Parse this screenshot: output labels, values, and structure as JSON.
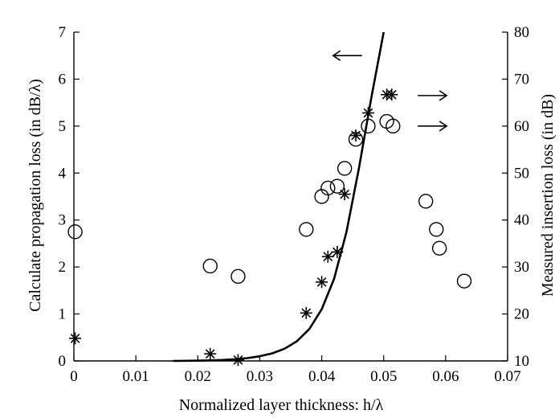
{
  "chart_data": {
    "type": "scatter",
    "title": "",
    "xlabel": "Normalized layer thickness: h/λ",
    "ylabel_left": "Calculate propagation loss (in dB/λ)",
    "ylabel_right": "Measured insertion loss (in dB)",
    "xlim": [
      0,
      0.07
    ],
    "ylim_left": [
      0,
      7
    ],
    "ylim_right": [
      10,
      80
    ],
    "x_ticks": [
      0,
      0.01,
      0.02,
      0.03,
      0.04,
      0.05,
      0.06,
      0.07
    ],
    "x_tick_labels": [
      "0",
      "0.01",
      "0.02",
      "0.03",
      "0.04",
      "0.05",
      "0.06",
      "0.07"
    ],
    "y_left_ticks": [
      0,
      1,
      2,
      3,
      4,
      5,
      6,
      7
    ],
    "y_left_tick_labels": [
      "0",
      "1",
      "2",
      "3",
      "4",
      "5",
      "6",
      "7"
    ],
    "y_right_ticks": [
      10,
      20,
      30,
      40,
      50,
      60,
      70,
      80
    ],
    "y_right_tick_labels": [
      "10",
      "20",
      "30",
      "40",
      "50",
      "60",
      "70",
      "80"
    ],
    "grid": false,
    "series": [
      {
        "name": "Calculated propagation loss",
        "marker": "line",
        "axis": "left",
        "x": [
          0.016,
          0.02,
          0.024,
          0.026,
          0.028,
          0.03,
          0.032,
          0.034,
          0.036,
          0.038,
          0.04,
          0.042,
          0.044,
          0.046,
          0.048,
          0.05
        ],
        "y": [
          0.0,
          0.005,
          0.02,
          0.035,
          0.06,
          0.1,
          0.16,
          0.26,
          0.42,
          0.68,
          1.1,
          1.75,
          2.75,
          4.1,
          5.6,
          7.0
        ]
      },
      {
        "name": "Measured insertion loss (asterisk)",
        "marker": "asterisk",
        "axis": "right",
        "x": [
          0.0002,
          0.022,
          0.0265,
          0.0375,
          0.04,
          0.041,
          0.0425,
          0.0437,
          0.0455,
          0.0475,
          0.0505,
          0.0513
        ],
        "y": [
          14.8,
          11.5,
          10.2,
          20.2,
          26.8,
          32.2,
          33.2,
          45.5,
          58.0,
          62.8,
          66.7,
          66.7
        ]
      },
      {
        "name": "Measured insertion loss (circle)",
        "marker": "circle",
        "axis": "right",
        "x": [
          0.0002,
          0.022,
          0.0265,
          0.0375,
          0.04,
          0.041,
          0.0425,
          0.0437,
          0.0455,
          0.0475,
          0.0505,
          0.0515,
          0.0568,
          0.0585,
          0.059,
          0.063
        ],
        "y": [
          37.5,
          30.2,
          28.0,
          38.0,
          45.0,
          46.8,
          47.2,
          51.0,
          57.2,
          60.0,
          61.0,
          60.0,
          44.0,
          38.0,
          34.0,
          27.0
        ]
      }
    ],
    "annotations": [
      {
        "type": "arrow",
        "direction": "left",
        "axis": "left",
        "x": 0.0465,
        "y": 6.5,
        "meaning": "curve belongs to left axis"
      },
      {
        "type": "arrow",
        "direction": "right",
        "axis": "right",
        "x": 0.0555,
        "y": 66.5,
        "meaning": "asterisks belong to right axis"
      },
      {
        "type": "arrow",
        "direction": "right",
        "axis": "right",
        "x": 0.0555,
        "y": 60.0,
        "meaning": "circles belong to right axis"
      }
    ]
  }
}
